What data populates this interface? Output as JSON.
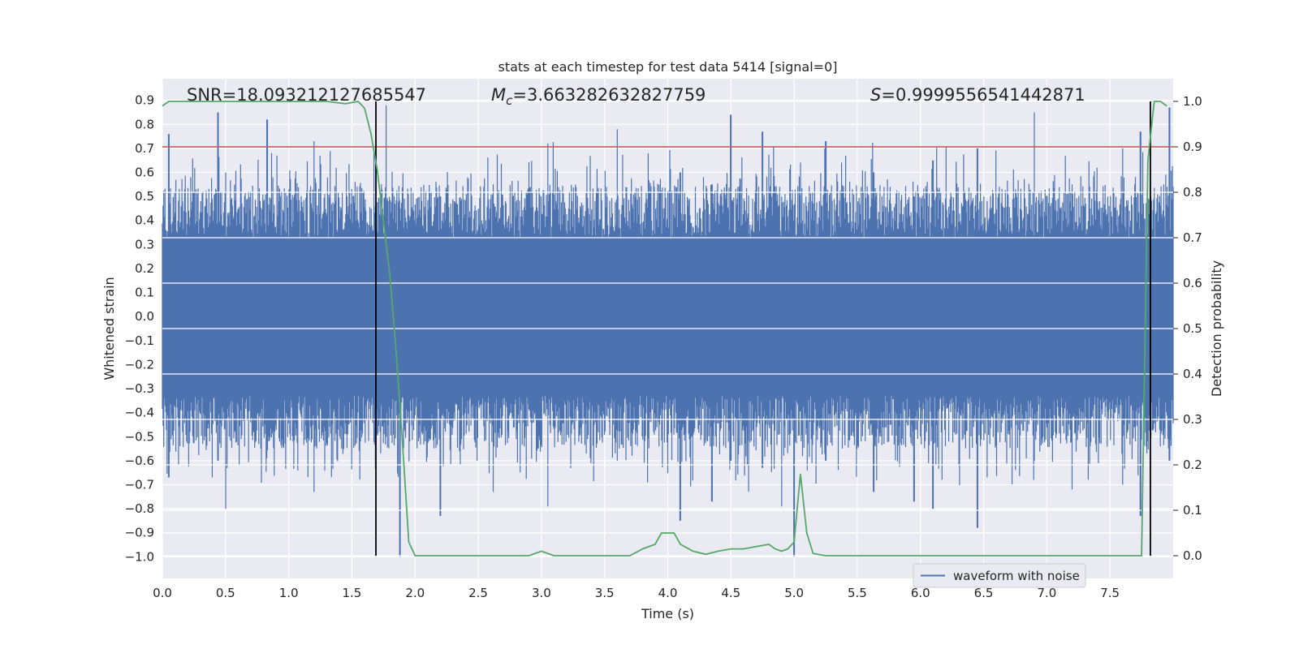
{
  "chart_data": {
    "type": "line",
    "title": "stats at each timestep for test data 5414 [signal=0]",
    "xlabel": "Time (s)",
    "ylabel": "Whitened strain",
    "ylabel_right": "Detection probability",
    "xlim": [
      0.0,
      8.0
    ],
    "ylim": [
      -1.09,
      0.99
    ],
    "ylim_right": [
      -0.05,
      1.05
    ],
    "x_ticks": [
      0.0,
      0.5,
      1.0,
      1.5,
      2.0,
      2.5,
      3.0,
      3.5,
      4.0,
      4.5,
      5.0,
      5.5,
      6.0,
      6.5,
      7.0,
      7.5
    ],
    "x_tick_labels": [
      "0.0",
      "0.5",
      "1.0",
      "1.5",
      "2.0",
      "2.5",
      "3.0",
      "3.5",
      "4.0",
      "4.5",
      "5.0",
      "5.5",
      "6.0",
      "6.5",
      "7.0",
      "7.5"
    ],
    "y_ticks": [
      -1.0,
      -0.9,
      -0.8,
      -0.7,
      -0.6,
      -0.5,
      -0.4,
      -0.3,
      -0.2,
      -0.1,
      0.0,
      0.1,
      0.2,
      0.3,
      0.4,
      0.5,
      0.6,
      0.7,
      0.8,
      0.9
    ],
    "y_tick_labels": [
      "−1.0",
      "−0.9",
      "−0.8",
      "−0.7",
      "−0.6",
      "−0.5",
      "−0.4",
      "−0.3",
      "−0.2",
      "−0.1",
      "0.0",
      "0.1",
      "0.2",
      "0.3",
      "0.4",
      "0.5",
      "0.6",
      "0.7",
      "0.8",
      "0.9"
    ],
    "y_ticks_right": [
      0.0,
      0.1,
      0.2,
      0.3,
      0.4,
      0.5,
      0.6,
      0.7,
      0.8,
      0.9,
      1.0
    ],
    "y_tick_labels_right": [
      "0.0",
      "0.1",
      "0.2",
      "0.3",
      "0.4",
      "0.5",
      "0.6",
      "0.7",
      "0.8",
      "0.9",
      "1.0"
    ],
    "annotations": {
      "snr": "SNR=18.093212127685547",
      "mc_symbol": "M",
      "mc_sub": "c",
      "mc_value": "=3.663282632827759",
      "s_symbol": "S",
      "s_value": "=0.9999556541442871"
    },
    "threshold_right": 0.9,
    "vlines_x": [
      1.69,
      7.82
    ],
    "waveform": {
      "name": "waveform with noise",
      "x_range": [
        0.0,
        8.0
      ],
      "envelope_abs": 0.33,
      "spikes": [
        {
          "x": 0.05,
          "max": 0.76,
          "min": -0.67
        },
        {
          "x": 0.44,
          "max": 0.85,
          "min": -0.6
        },
        {
          "x": 0.5,
          "max": 0.6,
          "min": -0.8
        },
        {
          "x": 0.83,
          "max": 0.82,
          "min": -0.45
        },
        {
          "x": 1.2,
          "max": 0.73,
          "min": -0.73
        },
        {
          "x": 1.77,
          "max": 0.88,
          "min": -0.5
        },
        {
          "x": 1.88,
          "max": 0.45,
          "min": -1.0
        },
        {
          "x": 2.2,
          "max": 0.5,
          "min": -0.83
        },
        {
          "x": 2.62,
          "max": 0.55,
          "min": -0.73
        },
        {
          "x": 3.05,
          "max": 0.55,
          "min": -0.79
        },
        {
          "x": 3.6,
          "max": 0.78,
          "min": -0.6
        },
        {
          "x": 4.1,
          "max": 0.6,
          "min": -0.85
        },
        {
          "x": 4.35,
          "max": 0.55,
          "min": -0.77
        },
        {
          "x": 4.5,
          "max": 0.84,
          "min": -0.6
        },
        {
          "x": 4.75,
          "max": 0.77,
          "min": -0.63
        },
        {
          "x": 4.9,
          "max": 0.5,
          "min": -0.79
        },
        {
          "x": 5.0,
          "max": 0.4,
          "min": -1.0
        },
        {
          "x": 5.25,
          "max": 0.73,
          "min": -0.6
        },
        {
          "x": 5.63,
          "max": 0.6,
          "min": -0.73
        },
        {
          "x": 5.95,
          "max": 0.5,
          "min": -0.77
        },
        {
          "x": 6.1,
          "max": 0.65,
          "min": -0.8
        },
        {
          "x": 6.45,
          "max": 0.7,
          "min": -0.88
        },
        {
          "x": 6.9,
          "max": 0.85,
          "min": -0.6
        },
        {
          "x": 7.2,
          "max": 0.55,
          "min": -0.72
        },
        {
          "x": 7.6,
          "max": 0.7,
          "min": -0.7
        },
        {
          "x": 7.74,
          "max": 0.77,
          "min": -0.83
        },
        {
          "x": 7.97,
          "max": 0.87,
          "min": -0.6
        }
      ]
    },
    "probability": {
      "x": [
        0.0,
        0.05,
        0.1,
        0.5,
        1.0,
        1.3,
        1.45,
        1.55,
        1.6,
        1.65,
        1.7,
        1.8,
        1.85,
        1.9,
        1.95,
        2.0,
        2.1,
        2.25,
        2.4,
        2.5,
        2.6,
        2.75,
        2.9,
        3.0,
        3.1,
        3.3,
        3.5,
        3.7,
        3.8,
        3.9,
        3.95,
        4.05,
        4.1,
        4.2,
        4.3,
        4.4,
        4.5,
        4.6,
        4.7,
        4.8,
        4.85,
        4.9,
        4.95,
        5.0,
        5.05,
        5.1,
        5.15,
        5.25,
        5.4,
        5.5,
        6.0,
        6.5,
        7.0,
        7.3,
        7.5,
        7.75,
        7.8,
        7.85,
        7.9,
        7.95
      ],
      "y": [
        0.99,
        1.0,
        1.0,
        1.0,
        1.0,
        1.0,
        0.995,
        1.0,
        0.985,
        0.93,
        0.85,
        0.62,
        0.45,
        0.25,
        0.03,
        0.0,
        0.0,
        0.0,
        0.0,
        0.0,
        0.0,
        0.0,
        0.0,
        0.01,
        0.0,
        0.0,
        0.0,
        0.0,
        0.015,
        0.025,
        0.05,
        0.05,
        0.025,
        0.01,
        0.003,
        0.01,
        0.015,
        0.015,
        0.02,
        0.025,
        0.015,
        0.01,
        0.015,
        0.03,
        0.18,
        0.05,
        0.005,
        0.0,
        0.0,
        0.0,
        0.0,
        0.0,
        0.0,
        0.0,
        0.0,
        0.0,
        0.87,
        1.0,
        1.0,
        0.99
      ]
    }
  }
}
